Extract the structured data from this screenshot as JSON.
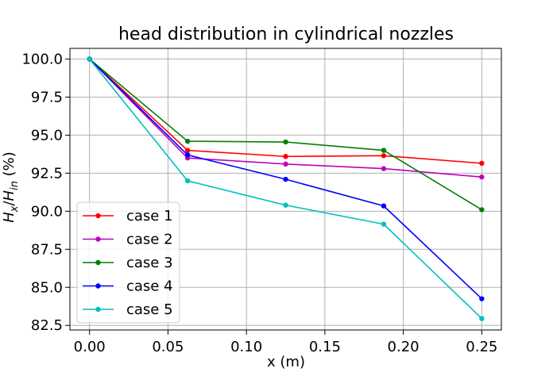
{
  "chart_data": {
    "type": "line",
    "title": "head distribution in cylindrical nozzles",
    "xlabel": "x (m)",
    "ylabel": "H_x/H_in (%)",
    "ylabel_parts": {
      "main1": "H",
      "sub1": "x",
      "slash": "/",
      "main2": "H",
      "sub2": "in",
      "unit": " (%)"
    },
    "x": [
      0.0,
      0.0625,
      0.125,
      0.1875,
      0.25
    ],
    "xlim": [
      -0.0125,
      0.2625
    ],
    "ylim": [
      82.2,
      100.7
    ],
    "xticks": [
      0.0,
      0.05,
      0.1,
      0.15,
      0.2,
      0.25
    ],
    "xtick_labels": [
      "0.00",
      "0.05",
      "0.10",
      "0.15",
      "0.20",
      "0.25"
    ],
    "yticks": [
      82.5,
      85.0,
      87.5,
      90.0,
      92.5,
      95.0,
      97.5,
      100.0
    ],
    "ytick_labels": [
      "82.5",
      "85.0",
      "87.5",
      "90.0",
      "92.5",
      "95.0",
      "97.5",
      "100.0"
    ],
    "grid": true,
    "legend_position": "lower-left",
    "series": [
      {
        "name": "case 1",
        "color": "#ff0000",
        "values": [
          100.0,
          94.0,
          93.6,
          93.65,
          93.15
        ]
      },
      {
        "name": "case 2",
        "color": "#bf00bf",
        "values": [
          100.0,
          93.5,
          93.1,
          92.8,
          92.25
        ]
      },
      {
        "name": "case 3",
        "color": "#008000",
        "values": [
          100.0,
          94.6,
          94.55,
          94.0,
          90.1
        ]
      },
      {
        "name": "case 4",
        "color": "#0000ff",
        "values": [
          100.0,
          93.7,
          92.1,
          90.35,
          84.25
        ]
      },
      {
        "name": "case 5",
        "color": "#00bfbf",
        "values": [
          100.0,
          92.0,
          90.4,
          89.15,
          82.95
        ]
      }
    ]
  }
}
